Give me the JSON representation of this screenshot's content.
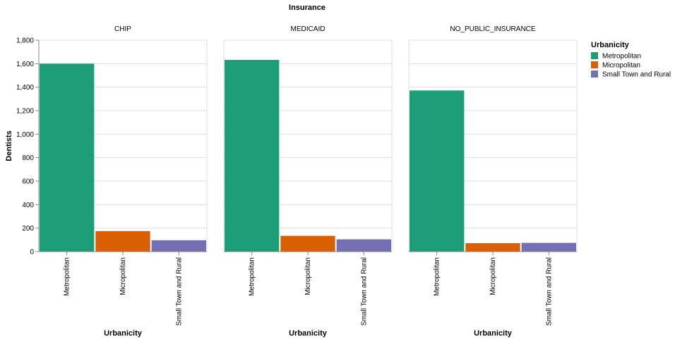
{
  "chart_data": {
    "type": "bar",
    "facet_header": "Insurance",
    "facets": [
      "CHIP",
      "MEDICAID",
      "NO_PUBLIC_INSURANCE"
    ],
    "categories": [
      "Metropolitan",
      "Micropolitan",
      "Small Town and Rural"
    ],
    "values": [
      [
        1600,
        175,
        97
      ],
      [
        1632,
        135,
        105
      ],
      [
        1372,
        72,
        75
      ]
    ],
    "xlabel": "Urbanicity",
    "ylabel": "Dentists",
    "ylim": [
      0,
      1800
    ],
    "yticks": [
      0,
      200,
      400,
      600,
      800,
      1000,
      1200,
      1400,
      1600,
      1800
    ],
    "ytick_labels": [
      "0",
      "200",
      "400",
      "600",
      "800",
      "1,000",
      "1,200",
      "1,400",
      "1,600",
      "1,800"
    ],
    "grid": true,
    "legend": {
      "title": "Urbanicity",
      "placement": "right",
      "entries": [
        "Metropolitan",
        "Micropolitan",
        "Small Town and Rural"
      ]
    },
    "colors": [
      "#1b9e77",
      "#d95f02",
      "#7570b3"
    ]
  }
}
